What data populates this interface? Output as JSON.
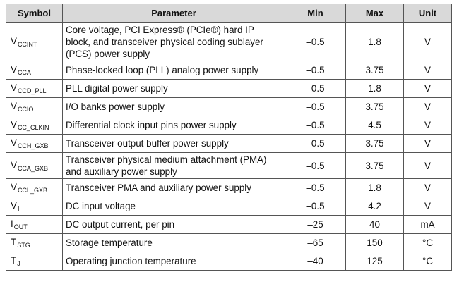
{
  "table": {
    "headers": [
      "Symbol",
      "Parameter",
      "Min",
      "Max",
      "Unit"
    ],
    "rows": [
      {
        "sym_main": "V",
        "sym_sub": "CCINT",
        "param": "Core voltage, PCI Express® (PCIe®) hard IP block, and transceiver physical coding sublayer (PCS) power supply",
        "min": "–0.5",
        "max": "1.8",
        "unit": "V"
      },
      {
        "sym_main": "V",
        "sym_sub": "CCA",
        "param": "Phase-locked loop (PLL) analog power supply",
        "min": "–0.5",
        "max": "3.75",
        "unit": "V"
      },
      {
        "sym_main": "V",
        "sym_sub": "CCD_PLL",
        "param": "PLL digital power supply",
        "min": "–0.5",
        "max": "1.8",
        "unit": "V"
      },
      {
        "sym_main": "V",
        "sym_sub": "CCIO",
        "param": "I/O banks power supply",
        "min": "–0.5",
        "max": "3.75",
        "unit": "V"
      },
      {
        "sym_main": "V",
        "sym_sub": "CC_CLKIN",
        "param": "Differential clock input pins power supply",
        "min": "–0.5",
        "max": "4.5",
        "unit": "V"
      },
      {
        "sym_main": "V",
        "sym_sub": "CCH_GXB",
        "param": "Transceiver output buffer power supply",
        "min": "–0.5",
        "max": "3.75",
        "unit": "V"
      },
      {
        "sym_main": "V",
        "sym_sub": "CCA_GXB",
        "param": "Transceiver physical medium attachment (PMA) and auxiliary power supply",
        "min": "–0.5",
        "max": "3.75",
        "unit": "V"
      },
      {
        "sym_main": "V",
        "sym_sub": "CCL_GXB",
        "param": "Transceiver PMA and auxiliary power supply",
        "min": "–0.5",
        "max": "1.8",
        "unit": "V"
      },
      {
        "sym_main": "V",
        "sym_sub": "I",
        "param": "DC input voltage",
        "min": "–0.5",
        "max": "4.2",
        "unit": "V"
      },
      {
        "sym_main": "I",
        "sym_sub": "OUT",
        "param": "DC output current, per pin",
        "min": "–25",
        "max": "40",
        "unit": "mA"
      },
      {
        "sym_main": "T",
        "sym_sub": "STG",
        "param": "Storage temperature",
        "min": "–65",
        "max": "150",
        "unit": "°C"
      },
      {
        "sym_main": "T",
        "sym_sub": "J",
        "param": "Operating junction temperature",
        "min": "–40",
        "max": "125",
        "unit": "°C"
      }
    ]
  }
}
